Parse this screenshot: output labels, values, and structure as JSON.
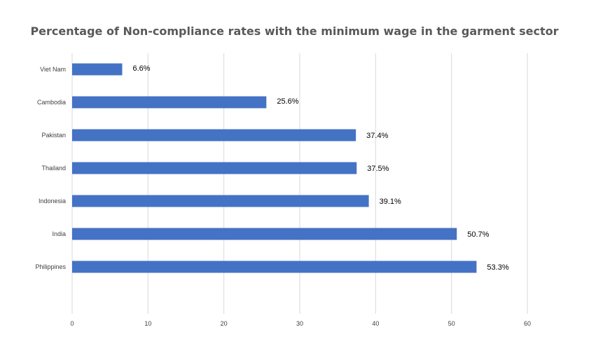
{
  "chart_data": {
    "type": "bar",
    "orientation": "horizontal",
    "title": "Percentage of Non-compliance rates with the minimum wage in the garment sector",
    "categories": [
      "Viet Nam",
      "Cambodia",
      "Pakistan",
      "Thailand",
      "Indonesia",
      "India",
      "Philippines"
    ],
    "values": [
      6.6,
      25.6,
      37.4,
      37.5,
      39.1,
      50.7,
      53.3
    ],
    "data_labels": [
      "6.6%",
      "25.6%",
      "37.4%",
      "37.5%",
      "39.1%",
      "50.7%",
      "53.3%"
    ],
    "xlim": [
      0,
      60
    ],
    "xticks": [
      0,
      10,
      20,
      30,
      40,
      50,
      60
    ],
    "xlabel": "",
    "ylabel": "",
    "grid": "vertical",
    "legend": "none",
    "bar_color": "#4472C4"
  }
}
